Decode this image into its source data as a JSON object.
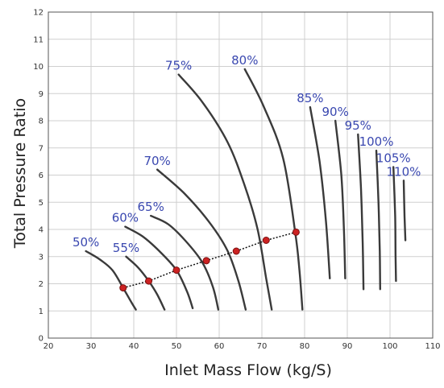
{
  "chart_data": {
    "type": "line",
    "xlabel": "Inlet Mass Flow (kg/S)",
    "ylabel": "Total Pressure Ratio",
    "xlim": [
      20,
      110
    ],
    "ylim": [
      0,
      12
    ],
    "x_ticks": [
      "20",
      "30",
      "40",
      "50",
      "60",
      "70",
      "80",
      "90",
      "100",
      "110"
    ],
    "y_ticks": [
      "0",
      "1",
      "2",
      "3",
      "4",
      "5",
      "6",
      "7",
      "8",
      "9",
      "10",
      "11",
      "12"
    ],
    "grid": true,
    "series": [
      {
        "name": "50%",
        "points": [
          [
            28.8,
            3.2
          ],
          [
            32,
            2.9
          ],
          [
            35,
            2.5
          ],
          [
            37.5,
            1.85
          ],
          [
            39.5,
            1.3
          ],
          [
            40.5,
            1.05
          ]
        ]
      },
      {
        "name": "55%",
        "points": [
          [
            38.2,
            3.0
          ],
          [
            41,
            2.6
          ],
          [
            43.5,
            2.1
          ],
          [
            45.5,
            1.6
          ],
          [
            47.2,
            1.05
          ]
        ]
      },
      {
        "name": "60%",
        "points": [
          [
            38,
            4.1
          ],
          [
            42,
            3.75
          ],
          [
            46,
            3.2
          ],
          [
            50,
            2.5
          ],
          [
            52.5,
            1.7
          ],
          [
            53.8,
            1.1
          ]
        ]
      },
      {
        "name": "65%",
        "points": [
          [
            44,
            4.5
          ],
          [
            48,
            4.2
          ],
          [
            52,
            3.6
          ],
          [
            56,
            2.8
          ],
          [
            58.5,
            1.9
          ],
          [
            59.8,
            1.05
          ]
        ]
      },
      {
        "name": "70%",
        "points": [
          [
            45.5,
            6.2
          ],
          [
            52,
            5.3
          ],
          [
            58,
            4.2
          ],
          [
            62,
            3.2
          ],
          [
            64.5,
            2.1
          ],
          [
            66.2,
            1.05
          ]
        ]
      },
      {
        "name": "75%",
        "points": [
          [
            50.5,
            9.7
          ],
          [
            56,
            8.7
          ],
          [
            62,
            7.2
          ],
          [
            66,
            5.6
          ],
          [
            69,
            4.0
          ],
          [
            71,
            2.2
          ],
          [
            72.3,
            1.05
          ]
        ]
      },
      {
        "name": "80%",
        "points": [
          [
            66,
            9.9
          ],
          [
            70.5,
            8.5
          ],
          [
            75,
            6.6
          ],
          [
            77.8,
            3.9
          ],
          [
            78.8,
            2.5
          ],
          [
            79.5,
            1.05
          ]
        ]
      },
      {
        "name": "85%",
        "points": [
          [
            81.3,
            8.5
          ],
          [
            83.5,
            6.5
          ],
          [
            85,
            4.3
          ],
          [
            85.9,
            2.2
          ]
        ]
      },
      {
        "name": "90%",
        "points": [
          [
            87.2,
            8.0
          ],
          [
            88.6,
            6.0
          ],
          [
            89.2,
            4.0
          ],
          [
            89.5,
            2.2
          ]
        ]
      },
      {
        "name": "95%",
        "points": [
          [
            92.5,
            7.5
          ],
          [
            93.2,
            5.5
          ],
          [
            93.6,
            3.5
          ],
          [
            93.8,
            1.8
          ]
        ]
      },
      {
        "name": "100%",
        "points": [
          [
            96.8,
            6.9
          ],
          [
            97.3,
            5.0
          ],
          [
            97.6,
            3.2
          ],
          [
            97.7,
            1.8
          ]
        ]
      },
      {
        "name": "105%",
        "points": [
          [
            100.8,
            6.3
          ],
          [
            101.2,
            4.5
          ],
          [
            101.3,
            3.0
          ],
          [
            101.4,
            2.1
          ]
        ]
      },
      {
        "name": "110%",
        "points": [
          [
            103.2,
            5.8
          ],
          [
            103.4,
            4.5
          ],
          [
            103.6,
            3.6
          ]
        ]
      }
    ],
    "operating_line": {
      "points": [
        [
          37.5,
          1.85
        ],
        [
          43.5,
          2.1
        ],
        [
          50,
          2.5
        ],
        [
          57,
          2.85
        ],
        [
          64,
          3.2
        ],
        [
          71,
          3.6
        ],
        [
          78,
          3.9
        ]
      ],
      "line_color": "#111111",
      "marker_color": "#cc2222"
    },
    "curve_color": "#3a3a3a",
    "label_color": "#3a48b0"
  }
}
